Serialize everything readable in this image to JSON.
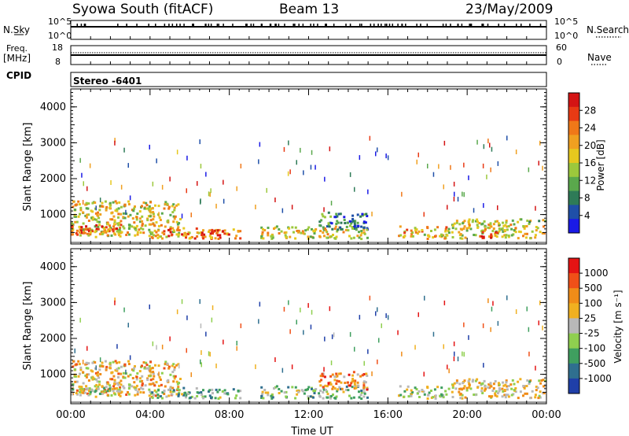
{
  "header": {
    "station": "Syowa South (fitACF)",
    "beam": "Beam 13",
    "date": "23/May/2009"
  },
  "panels": {
    "nsky": {
      "label": "N.Sky",
      "ticks": [
        "10^5",
        "10^0"
      ]
    },
    "nsearch": {
      "label": "N.Search",
      "ticks": [
        "10^5",
        "10^0"
      ]
    },
    "freq": {
      "label_line1": "Freq.",
      "label_line2": "[MHz]",
      "ticks": [
        "18",
        "8"
      ]
    },
    "nave": {
      "label": "Nave",
      "ticks": [
        "60",
        "0"
      ]
    },
    "cpid": {
      "label": "CPID",
      "value": "Stereo -6401"
    }
  },
  "chart_data": [
    {
      "type": "heatmap",
      "name": "power",
      "ylabel": "Slant Range [km]",
      "xlabel": "",
      "ylim": [
        180,
        4500
      ],
      "y_ticks": [
        "1000",
        "2000",
        "3000",
        "4000"
      ],
      "y_tick_values": [
        1000,
        2000,
        3000,
        4000
      ],
      "xlim_hours": [
        0,
        24
      ],
      "colorbar": {
        "label": "Power [dB]",
        "tick_labels": [
          "28",
          "24",
          "20",
          "16",
          "12",
          "8",
          "4"
        ],
        "tick_values": [
          28,
          24,
          20,
          16,
          12,
          8,
          4
        ],
        "range": [
          0,
          30
        ],
        "colors": [
          "#1a1ae6",
          "#1f4fa8",
          "#2e7b57",
          "#5aa84c",
          "#9cc83c",
          "#e6c81e",
          "#f0a020",
          "#f07818",
          "#e83a14",
          "#d41414"
        ]
      },
      "echo_regions": [
        {
          "t0": 0.0,
          "t1": 5.5,
          "r0": 400,
          "r1": 1400,
          "level": 0.55
        },
        {
          "t0": 0.0,
          "t1": 2.5,
          "r0": 450,
          "r1": 750,
          "level": 0.75
        },
        {
          "t0": 4.0,
          "t1": 8.5,
          "r0": 350,
          "r1": 650,
          "level": 0.7
        },
        {
          "t0": 6.5,
          "t1": 8.0,
          "r0": 450,
          "r1": 600,
          "level": 0.9
        },
        {
          "t0": 9.5,
          "t1": 15.0,
          "r0": 350,
          "r1": 700,
          "level": 0.55
        },
        {
          "t0": 12.5,
          "t1": 15.0,
          "r0": 600,
          "r1": 1100,
          "level": 0.25
        },
        {
          "t0": 16.5,
          "t1": 19.0,
          "r0": 350,
          "r1": 700,
          "level": 0.6
        },
        {
          "t0": 19.0,
          "t1": 23.9,
          "r0": 350,
          "r1": 900,
          "level": 0.5
        },
        {
          "t0": 20.5,
          "t1": 21.5,
          "r0": 350,
          "r1": 550,
          "level": 0.9
        }
      ]
    },
    {
      "type": "heatmap",
      "name": "velocity",
      "ylabel": "Slant Range [km]",
      "xlabel": "Time UT",
      "ylim": [
        180,
        4500
      ],
      "y_ticks": [
        "1000",
        "2000",
        "3000",
        "4000"
      ],
      "y_tick_values": [
        1000,
        2000,
        3000,
        4000
      ],
      "x_ticks": [
        "00:00",
        "04:00",
        "08:00",
        "12:00",
        "16:00",
        "20:00",
        "00:00"
      ],
      "x_tick_hours": [
        0,
        4,
        8,
        12,
        16,
        20,
        24
      ],
      "colorbar": {
        "label": "Velocity [m s⁻¹]",
        "tick_labels": [
          "1000",
          "500",
          "100",
          "25",
          "-25",
          "-100",
          "-500",
          "-1000"
        ],
        "colors": [
          "#1f3fa8",
          "#2f6f8f",
          "#3f9f5f",
          "#8fcf4f",
          "#b8b8b8",
          "#f0b020",
          "#f08c18",
          "#f05018",
          "#e41414"
        ]
      },
      "echo_regions": [
        {
          "t0": 0.0,
          "t1": 5.5,
          "r0": 400,
          "r1": 1400,
          "level": 0.6
        },
        {
          "t0": 0.0,
          "t1": 2.5,
          "r0": 450,
          "r1": 750,
          "level": 0.45
        },
        {
          "t0": 4.0,
          "t1": 8.5,
          "r0": 350,
          "r1": 650,
          "level": 0.35
        },
        {
          "t0": 9.5,
          "t1": 15.0,
          "r0": 350,
          "r1": 700,
          "level": 0.4
        },
        {
          "t0": 12.5,
          "t1": 15.0,
          "r0": 600,
          "r1": 1100,
          "level": 0.7
        },
        {
          "t0": 16.5,
          "t1": 19.0,
          "r0": 350,
          "r1": 700,
          "level": 0.45
        },
        {
          "t0": 19.0,
          "t1": 23.9,
          "r0": 350,
          "r1": 900,
          "level": 0.55
        }
      ]
    }
  ]
}
